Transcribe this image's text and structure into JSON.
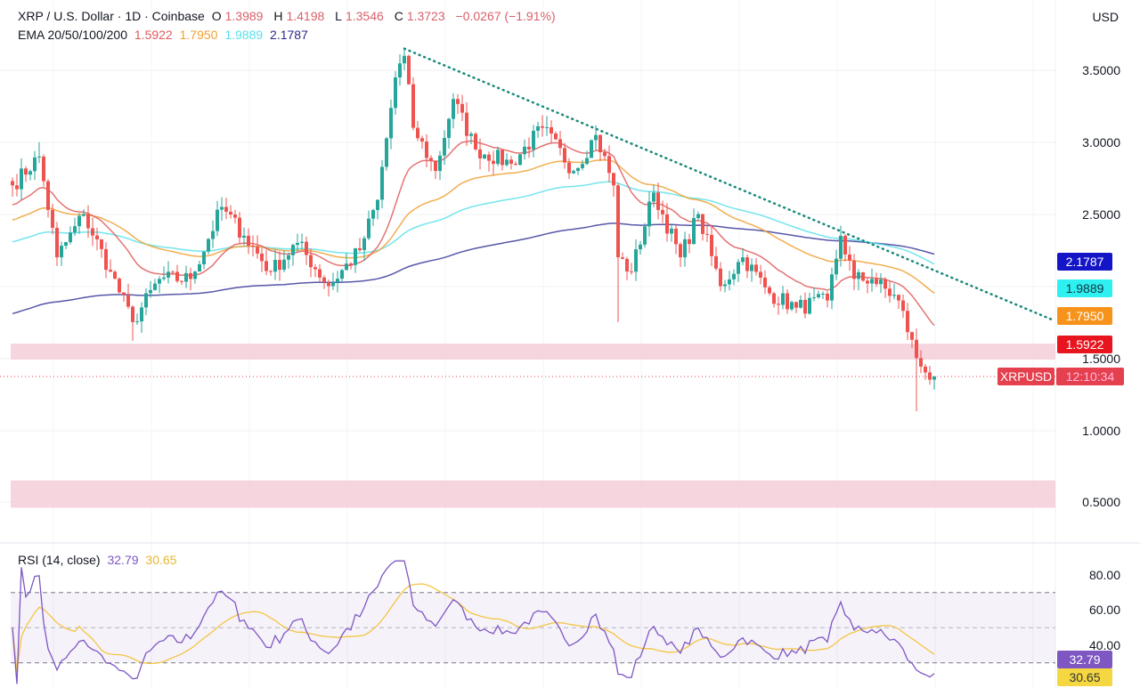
{
  "header": {
    "symbol": "XRP / U.S. Dollar · 1D · Coinbase",
    "open_label": "O",
    "open": "1.3989",
    "high_label": "H",
    "high": "1.4198",
    "low_label": "L",
    "low": "1.3546",
    "close_label": "C",
    "close": "1.3723",
    "change": "−0.0267 (−1.91%)",
    "ema_label": "EMA 20/50/100/200",
    "ema20": "1.5922",
    "ema50": "1.7950",
    "ema100": "1.9889",
    "ema200": "2.1787"
  },
  "currency": "USD",
  "price_axis": [
    "3.5000",
    "3.0000",
    "2.5000",
    "1.5000",
    "1.0000",
    "0.5000"
  ],
  "tags": {
    "ema200": "2.1787",
    "ema100": "1.9889",
    "ema50": "1.7950",
    "ema20": "1.5922",
    "symbol": "XRPUSD",
    "countdown": "12:10:34"
  },
  "rsi": {
    "label": "RSI (14, close)",
    "value": "32.79",
    "ma": "30.65",
    "axis": [
      "80.00",
      "60.00",
      "40.00"
    ]
  },
  "colors": {
    "up": "#26a69a",
    "down": "#ef5350",
    "ema20": "#e05a5a",
    "ema50": "#f0a030",
    "ema100": "#5ae0ea",
    "ema200": "#3a3a9a",
    "rsi": "#7e57c2",
    "rsi_ma": "#f5c542",
    "zone": "#f4c7d3"
  },
  "chart_data": {
    "type": "candlestick",
    "title": "XRP / U.S. Dollar · 1D · Coinbase",
    "price_range": [
      0.35,
      3.8
    ],
    "close_anchors": [
      [
        0,
        2.7
      ],
      [
        6,
        2.9
      ],
      [
        10,
        2.2
      ],
      [
        16,
        2.5
      ],
      [
        22,
        2.1
      ],
      [
        27,
        1.75
      ],
      [
        33,
        2.05
      ],
      [
        40,
        2.05
      ],
      [
        47,
        2.55
      ],
      [
        52,
        2.35
      ],
      [
        58,
        2.1
      ],
      [
        64,
        2.3
      ],
      [
        71,
        2.0
      ],
      [
        78,
        2.25
      ],
      [
        82,
        2.6
      ],
      [
        86,
        3.45
      ],
      [
        88,
        3.6
      ],
      [
        90,
        3.1
      ],
      [
        95,
        2.8
      ],
      [
        99,
        3.3
      ],
      [
        104,
        2.95
      ],
      [
        112,
        2.85
      ],
      [
        119,
        3.1
      ],
      [
        126,
        2.8
      ],
      [
        131,
        3.05
      ],
      [
        135,
        2.7
      ],
      [
        136,
        2.2
      ],
      [
        139,
        2.1
      ],
      [
        144,
        2.65
      ],
      [
        150,
        2.2
      ],
      [
        154,
        2.5
      ],
      [
        159,
        2.0
      ],
      [
        164,
        2.2
      ],
      [
        170,
        1.95
      ],
      [
        176,
        1.85
      ],
      [
        183,
        1.9
      ],
      [
        186,
        2.35
      ],
      [
        189,
        2.05
      ],
      [
        193,
        2.05
      ],
      [
        199,
        1.9
      ],
      [
        203,
        1.5
      ],
      [
        205,
        1.4
      ],
      [
        207,
        1.3723
      ]
    ],
    "ema_seed": {
      "ema20": 2.55,
      "ema50": 2.45,
      "ema100": 2.3,
      "ema200": 1.8
    },
    "trendline": [
      [
        88,
        3.65
      ],
      [
        234,
        1.76
      ]
    ],
    "support_zones": [
      [
        1.49,
        1.6
      ],
      [
        0.46,
        0.65
      ]
    ],
    "rsi_levels": [
      70,
      50,
      30
    ]
  }
}
